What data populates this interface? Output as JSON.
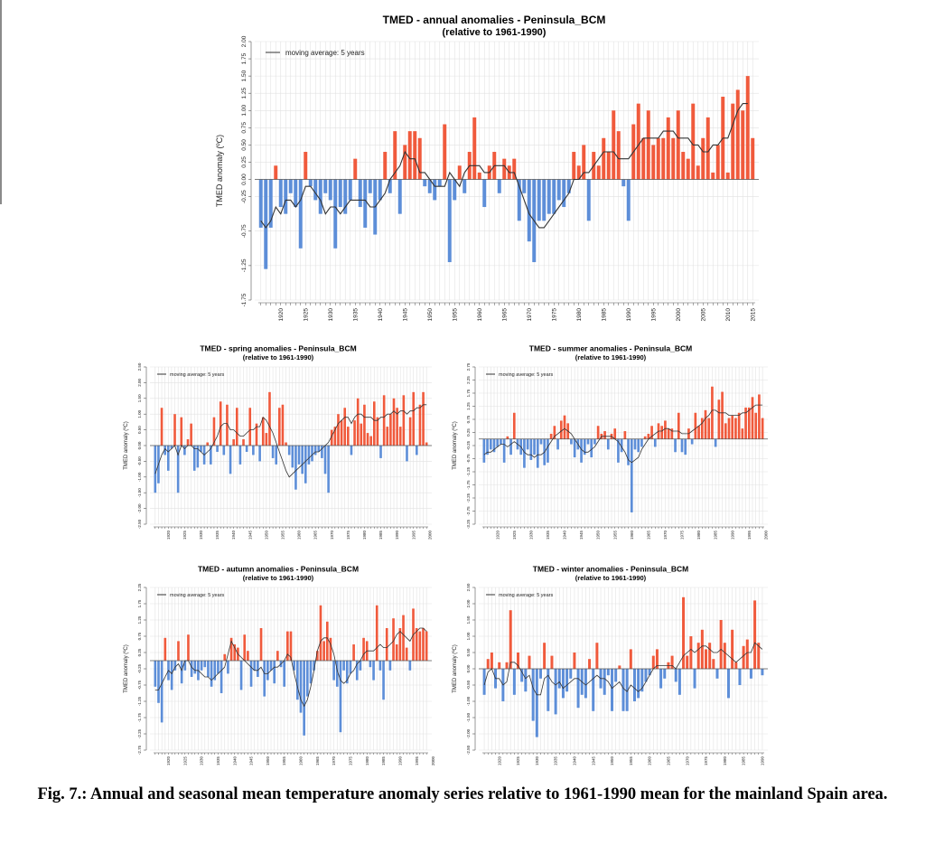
{
  "figure": {
    "caption": "Fig. 7.: Annual and seasonal mean temperature anomaly series relative to 1961-1990 mean for the mainland Spain area."
  },
  "colors": {
    "positive": "#f05a3c",
    "negative": "#5d8ed8",
    "moving_average": "#333333",
    "grid": "#e2e2e2"
  },
  "chart_data": [
    {
      "id": "annual",
      "type": "bar",
      "title": "TMED - annual  anomalies - Peninsula_BCM",
      "subtitle": "(relative to 1961-1990)",
      "ylabel": "TMED anomaly (ºC)",
      "legend": "moving average: 5 years",
      "legend_position": "top-left",
      "grid": true,
      "x_start": 1916,
      "ylim": [
        -1.75,
        2.0
      ],
      "yticks": [
        "-1.75",
        "-1.25",
        "-0.75",
        "-0.25",
        "0.00",
        "0.25",
        "0.50",
        "0.75",
        "1.00",
        "1.25",
        "1.50",
        "1.75",
        "2.00"
      ],
      "xticks": [
        "1920",
        "1925",
        "1930",
        "1935",
        "1940",
        "1945",
        "1950",
        "1955",
        "1960",
        "1965",
        "1970",
        "1975",
        "1980",
        "1985",
        "1990",
        "1995",
        "2000",
        "2005",
        "2010",
        "2015"
      ],
      "values": [
        -0.7,
        -1.3,
        -0.7,
        0.2,
        -0.4,
        -0.5,
        -0.2,
        -0.4,
        -1.0,
        0.4,
        -0.1,
        -0.3,
        -0.5,
        -0.2,
        -0.3,
        -1.0,
        -0.4,
        -0.5,
        -0.3,
        0.3,
        -0.4,
        -0.7,
        -0.2,
        -0.8,
        -0.3,
        0.4,
        -0.2,
        0.7,
        -0.5,
        0.5,
        0.7,
        0.7,
        0.6,
        -0.1,
        -0.2,
        -0.3,
        -0.1,
        0.8,
        -1.2,
        -0.3,
        0.2,
        -0.2,
        0.4,
        0.9,
        0.1,
        -0.4,
        0.2,
        0.4,
        -0.2,
        0.3,
        0.2,
        0.3,
        -0.6,
        -0.2,
        -0.9,
        -1.2,
        -0.6,
        -0.6,
        -0.5,
        -0.5,
        -0.3,
        -0.4,
        -0.2,
        0.4,
        0.2,
        0.5,
        -0.6,
        0.4,
        0.2,
        0.6,
        0.4,
        1.0,
        0.7,
        -0.1,
        -0.6,
        0.8,
        1.1,
        0.6,
        1.0,
        0.5,
        0.6,
        0.6,
        0.9,
        0.6,
        1.0,
        0.4,
        0.3,
        1.1,
        0.2,
        0.6,
        0.9,
        0.1,
        0.5,
        1.2,
        0.1,
        1.1,
        1.3,
        1.0,
        1.5,
        0.6
      ],
      "moving_average": [
        -0.6,
        -0.7,
        -0.6,
        -0.4,
        -0.5,
        -0.3,
        -0.3,
        -0.4,
        -0.3,
        -0.1,
        -0.1,
        -0.2,
        -0.3,
        -0.5,
        -0.4,
        -0.4,
        -0.5,
        -0.4,
        -0.3,
        -0.3,
        -0.3,
        -0.3,
        -0.4,
        -0.4,
        -0.3,
        -0.2,
        0.0,
        0.1,
        0.2,
        0.4,
        0.3,
        0.3,
        0.1,
        0.1,
        0.0,
        -0.1,
        -0.1,
        -0.1,
        0.1,
        0.0,
        -0.1,
        0.1,
        0.2,
        0.2,
        0.2,
        0.1,
        0.1,
        0.2,
        0.2,
        0.2,
        0.1,
        0.1,
        -0.1,
        -0.3,
        -0.5,
        -0.6,
        -0.7,
        -0.7,
        -0.6,
        -0.5,
        -0.4,
        -0.3,
        -0.2,
        0.0,
        0.0,
        0.1,
        0.1,
        0.2,
        0.3,
        0.4,
        0.4,
        0.4,
        0.3,
        0.3,
        0.3,
        0.4,
        0.5,
        0.6,
        0.6,
        0.6,
        0.6,
        0.7,
        0.7,
        0.7,
        0.6,
        0.6,
        0.6,
        0.5,
        0.5,
        0.4,
        0.4,
        0.5,
        0.5,
        0.6,
        0.6,
        0.8,
        1.0,
        1.1,
        1.1
      ]
    },
    {
      "id": "spring",
      "type": "bar",
      "title": "TMED - spring  anomalies - Peninsula_BCM",
      "subtitle": "(relative to 1961-1990)",
      "ylabel": "TMED anomaly (ºC)",
      "legend": "moving average: 5 years",
      "legend_position": "top-left",
      "grid": true,
      "x_start": 1916,
      "ylim": [
        -2.5,
        2.5
      ],
      "yticks": [
        "-2.50",
        "-2.00",
        "-1.50",
        "-1.00",
        "-0.50",
        "0.00",
        "0.50",
        "1.00",
        "1.50",
        "2.00",
        "2.50"
      ],
      "xticks": [
        "1920",
        "1925",
        "1930",
        "1935",
        "1940",
        "1945",
        "1950",
        "1955",
        "1960",
        "1965",
        "1970",
        "1975",
        "1980",
        "1985",
        "1990",
        "1995",
        "2000",
        "2005",
        "2010",
        "2015"
      ],
      "values": [
        -1.5,
        -1.2,
        1.2,
        -0.3,
        -0.8,
        -0.1,
        1.0,
        -1.5,
        0.9,
        -0.3,
        0.2,
        0.7,
        -0.8,
        -0.7,
        -0.2,
        -0.6,
        0.1,
        -0.6,
        0.9,
        -0.2,
        1.4,
        -0.3,
        1.3,
        -0.9,
        0.2,
        1.2,
        -0.6,
        0.2,
        -0.2,
        1.2,
        -0.3,
        0.7,
        -0.5,
        0.9,
        0.4,
        1.7,
        -0.4,
        -0.6,
        1.2,
        1.3,
        0.1,
        -0.3,
        -0.7,
        -1.4,
        -0.6,
        -0.9,
        -1.2,
        -0.6,
        -0.5,
        -0.3,
        -0.2,
        -0.4,
        -0.9,
        -1.5,
        0.5,
        0.6,
        1.0,
        0.8,
        1.2,
        0.6,
        -0.3,
        0.8,
        1.5,
        0.7,
        1.3,
        0.4,
        0.3,
        1.4,
        0.9,
        -0.4,
        1.6,
        0.6,
        1.0,
        1.5,
        1.2,
        0.6,
        1.6,
        -0.5,
        0.9,
        1.7,
        -0.3,
        1.3,
        1.7,
        0.1
      ],
      "moving_average": [
        -0.9,
        -0.6,
        -0.3,
        -0.1,
        -0.2,
        -0.1,
        0.0,
        -0.3,
        0.0,
        -0.1,
        0.0,
        0.0,
        -0.1,
        -0.1,
        -0.2,
        -0.3,
        -0.2,
        -0.1,
        0.1,
        0.3,
        0.6,
        0.7,
        0.7,
        0.5,
        0.5,
        0.4,
        0.3,
        0.3,
        0.4,
        0.5,
        0.5,
        0.6,
        0.6,
        0.9,
        0.8,
        0.6,
        0.4,
        0.1,
        -0.2,
        -0.5,
        -0.8,
        -1.0,
        -0.9,
        -0.8,
        -0.7,
        -0.6,
        -0.5,
        -0.4,
        -0.3,
        -0.2,
        -0.2,
        -0.1,
        0.0,
        0.1,
        0.3,
        0.5,
        0.7,
        0.8,
        0.9,
        0.9,
        0.7,
        0.9,
        1.0,
        1.0,
        0.9,
        0.9,
        0.9,
        0.8,
        0.8,
        0.9,
        0.9,
        1.0,
        1.0,
        1.1,
        1.0,
        1.1,
        1.1,
        1.0,
        1.1,
        1.1,
        1.2,
        1.2,
        1.3,
        1.3
      ]
    },
    {
      "id": "summer",
      "type": "bar",
      "title": "TMED - summer  anomalies - Peninsula_BCM",
      "subtitle": "(relative to 1961-1990)",
      "ylabel": "TMED anomaly (ºC)",
      "legend": "moving average: 5 years",
      "legend_position": "top-left",
      "grid": true,
      "x_start": 1916,
      "ylim": [
        -3.25,
        2.75
      ],
      "yticks": [
        "-3.25",
        "-2.75",
        "-2.25",
        "-1.75",
        "-1.25",
        "-0.75",
        "-0.25",
        "0.25",
        "0.75",
        "1.25",
        "1.75",
        "2.25",
        "2.75"
      ],
      "xticks": [
        "1920",
        "1925",
        "1930",
        "1935",
        "1940",
        "1945",
        "1950",
        "1955",
        "1960",
        "1965",
        "1970",
        "1975",
        "1980",
        "1985",
        "1990",
        "1995",
        "2000",
        "2005",
        "2010",
        "2015"
      ],
      "values": [
        -0.9,
        -0.6,
        -0.4,
        -0.5,
        -0.3,
        -0.2,
        -0.9,
        0.1,
        -0.6,
        1.0,
        -0.4,
        -0.6,
        -1.1,
        -0.4,
        -0.8,
        -0.6,
        -1.1,
        -0.2,
        -1.0,
        -0.9,
        0.2,
        0.5,
        -0.4,
        0.7,
        0.9,
        0.6,
        -0.2,
        -0.7,
        -0.4,
        -0.9,
        -0.6,
        -0.2,
        -0.7,
        -0.2,
        0.5,
        0.2,
        0.3,
        -0.4,
        0.2,
        0.4,
        -0.9,
        -0.5,
        0.3,
        -1.0,
        -2.8,
        -0.4,
        -0.5,
        -0.3,
        0.1,
        0.2,
        0.5,
        -0.3,
        0.6,
        0.5,
        0.7,
        0.4,
        0.4,
        -0.5,
        1.0,
        -0.5,
        -0.6,
        0.4,
        -0.2,
        1.0,
        0.5,
        0.8,
        1.1,
        0.8,
        2.0,
        -0.3,
        1.5,
        1.8,
        0.6,
        0.8,
        0.9,
        0.8,
        1.0,
        0.4,
        1.2,
        1.2,
        1.6,
        1.0,
        1.7,
        0.8
      ],
      "moving_average": [
        -0.6,
        -0.5,
        -0.5,
        -0.4,
        -0.3,
        -0.2,
        -0.2,
        -0.3,
        -0.2,
        -0.1,
        -0.2,
        -0.3,
        -0.5,
        -0.6,
        -0.6,
        -0.7,
        -0.6,
        -0.6,
        -0.5,
        -0.3,
        -0.1,
        0.1,
        0.2,
        0.3,
        0.4,
        0.3,
        0.2,
        0.0,
        -0.2,
        -0.4,
        -0.5,
        -0.5,
        -0.4,
        -0.3,
        -0.1,
        0.1,
        0.1,
        0.1,
        0.1,
        0.0,
        -0.1,
        -0.3,
        -0.5,
        -0.8,
        -0.9,
        -0.8,
        -0.7,
        -0.4,
        -0.2,
        0.0,
        0.1,
        0.2,
        0.3,
        0.3,
        0.4,
        0.4,
        0.3,
        0.3,
        0.3,
        0.2,
        0.2,
        0.2,
        0.3,
        0.4,
        0.5,
        0.6,
        0.8,
        0.9,
        1.1,
        1.1,
        1.0,
        1.0,
        1.0,
        0.9,
        0.9,
        0.9,
        0.9,
        1.0,
        1.0,
        1.1,
        1.2,
        1.3,
        1.3,
        1.3
      ]
    },
    {
      "id": "autumn",
      "type": "bar",
      "title": "TMED - autumn  anomalies - Peninsula_BCM",
      "subtitle": "(relative to 1961-1990)",
      "ylabel": "TMED anomaly (ºC)",
      "legend": "moving average: 5 years",
      "legend_position": "top-left",
      "grid": true,
      "x_start": 1916,
      "ylim": [
        -2.75,
        2.25
      ],
      "yticks": [
        "-2.75",
        "-2.25",
        "-1.75",
        "-1.25",
        "-0.75",
        "-0.25",
        "0.25",
        "0.75",
        "1.25",
        "1.75",
        "2.25"
      ],
      "xticks": [
        "1920",
        "1925",
        "1930",
        "1935",
        "1940",
        "1945",
        "1950",
        "1955",
        "1960",
        "1965",
        "1970",
        "1975",
        "1980",
        "1985",
        "1990",
        "1995",
        "2000",
        "2005",
        "2010",
        "2015"
      ],
      "values": [
        -0.8,
        -1.3,
        -1.9,
        0.7,
        -0.6,
        -0.9,
        -0.3,
        0.6,
        -0.7,
        -0.3,
        0.8,
        -0.5,
        -0.4,
        -0.6,
        -0.3,
        -0.2,
        -0.5,
        -0.8,
        -0.6,
        -0.4,
        -1.0,
        0.2,
        -0.4,
        0.7,
        0.5,
        0.4,
        -0.9,
        0.8,
        0.3,
        -0.8,
        -0.3,
        -0.5,
        1.0,
        -1.1,
        -0.6,
        -0.3,
        -0.7,
        0.3,
        -0.2,
        -0.8,
        0.9,
        0.9,
        -0.3,
        -1.2,
        -1.6,
        -2.3,
        -1.1,
        -0.7,
        -0.3,
        0.3,
        1.7,
        0.6,
        1.2,
        0.7,
        -0.6,
        -0.8,
        -2.2,
        -0.3,
        -0.7,
        -0.4,
        0.5,
        -0.6,
        -0.3,
        0.7,
        0.6,
        -0.2,
        -0.6,
        1.7,
        -0.3,
        -1.2,
        1.0,
        -0.3,
        1.3,
        0.5,
        1.0,
        1.4,
        0.4,
        -0.3,
        1.6,
        1.0,
        0.9,
        1.0,
        0.9
      ],
      "moving_average": [
        -0.9,
        -0.9,
        -0.7,
        -0.5,
        -0.3,
        -0.4,
        -0.2,
        -0.1,
        -0.3,
        0.0,
        0.0,
        -0.2,
        -0.3,
        -0.3,
        -0.4,
        -0.5,
        -0.5,
        -0.6,
        -0.5,
        -0.4,
        -0.3,
        -0.2,
        0.2,
        0.6,
        0.4,
        0.2,
        0.1,
        0.0,
        -0.1,
        -0.2,
        -0.3,
        -0.3,
        -0.2,
        -0.4,
        -0.4,
        -0.3,
        -0.2,
        -0.2,
        -0.1,
        0.0,
        0.2,
        0.1,
        -0.4,
        -0.8,
        -1.2,
        -1.4,
        -1.2,
        -0.8,
        -0.3,
        0.3,
        0.6,
        0.7,
        0.7,
        0.5,
        0.2,
        -0.3,
        -0.6,
        -0.7,
        -0.6,
        -0.4,
        -0.3,
        -0.1,
        0.0,
        0.2,
        0.3,
        0.3,
        0.3,
        0.4,
        0.5,
        0.4,
        0.4,
        0.5,
        0.6,
        0.8,
        0.9,
        0.8,
        0.7,
        0.6,
        0.8,
        0.9,
        1.0,
        1.0,
        0.9
      ]
    },
    {
      "id": "winter",
      "type": "bar",
      "title": "TMED - winter  anomalies - Peninsula_BCM",
      "subtitle": "(relative to 1961-1990)",
      "ylabel": "TMED anomaly (ºC)",
      "legend": "moving average: 5 years",
      "legend_position": "top-left",
      "grid": true,
      "x_start": 1916,
      "ylim": [
        -2.5,
        2.5
      ],
      "yticks": [
        "-2.50",
        "-2.00",
        "-1.50",
        "-1.00",
        "-0.50",
        "0.00",
        "0.50",
        "1.00",
        "1.50",
        "2.00",
        "2.50"
      ],
      "xticks": [
        "1920",
        "1925",
        "1930",
        "1935",
        "1940",
        "1945",
        "1950",
        "1955",
        "1960",
        "1965",
        "1970",
        "1975",
        "1980",
        "1985",
        "1990",
        "1995",
        "2000",
        "2005",
        "2010",
        "2015"
      ],
      "values": [
        -0.8,
        0.3,
        0.5,
        -0.6,
        0.2,
        -1.0,
        0.2,
        1.8,
        -0.8,
        0.5,
        -0.4,
        -0.7,
        0.4,
        -1.6,
        -2.1,
        -0.3,
        0.8,
        -1.3,
        0.4,
        -1.4,
        -0.6,
        -0.9,
        -0.7,
        -0.3,
        0.5,
        -1.2,
        -0.8,
        -0.9,
        0.3,
        -1.3,
        0.8,
        -0.6,
        -0.8,
        -0.2,
        -1.3,
        -0.4,
        0.1,
        -1.3,
        -1.3,
        0.6,
        -1.0,
        -0.9,
        -0.7,
        -0.4,
        -0.2,
        0.4,
        0.6,
        -0.6,
        -0.3,
        0.2,
        0.4,
        -0.4,
        -0.8,
        2.2,
        0.4,
        1.0,
        -0.6,
        0.8,
        1.2,
        0.6,
        0.8,
        0.3,
        -0.3,
        1.5,
        0.8,
        -0.9,
        1.2,
        0.2,
        -0.5,
        0.7,
        0.9,
        -0.3,
        2.1,
        0.8,
        -0.2
      ],
      "moving_average": [
        -0.5,
        -0.1,
        0.0,
        -0.3,
        -0.3,
        -0.5,
        -0.4,
        0.2,
        0.2,
        0.1,
        -0.1,
        -0.3,
        -0.2,
        -0.6,
        -0.8,
        -0.8,
        -0.3,
        -0.2,
        -0.4,
        -0.5,
        -0.4,
        -0.6,
        -0.5,
        -0.4,
        -0.3,
        -0.3,
        -0.4,
        -0.5,
        -0.4,
        -0.3,
        -0.2,
        -0.3,
        -0.3,
        -0.4,
        -0.6,
        -0.5,
        -0.4,
        -0.6,
        -0.7,
        -0.5,
        -0.6,
        -0.7,
        -0.6,
        -0.4,
        -0.2,
        0.0,
        0.1,
        0.1,
        0.1,
        0.1,
        0.1,
        0.0,
        0.2,
        0.4,
        0.5,
        0.6,
        0.5,
        0.6,
        0.7,
        0.7,
        0.6,
        0.5,
        0.5,
        0.6,
        0.5,
        0.4,
        0.3,
        0.2,
        0.3,
        0.4,
        0.5,
        0.5,
        0.8,
        0.7,
        0.6
      ]
    }
  ]
}
